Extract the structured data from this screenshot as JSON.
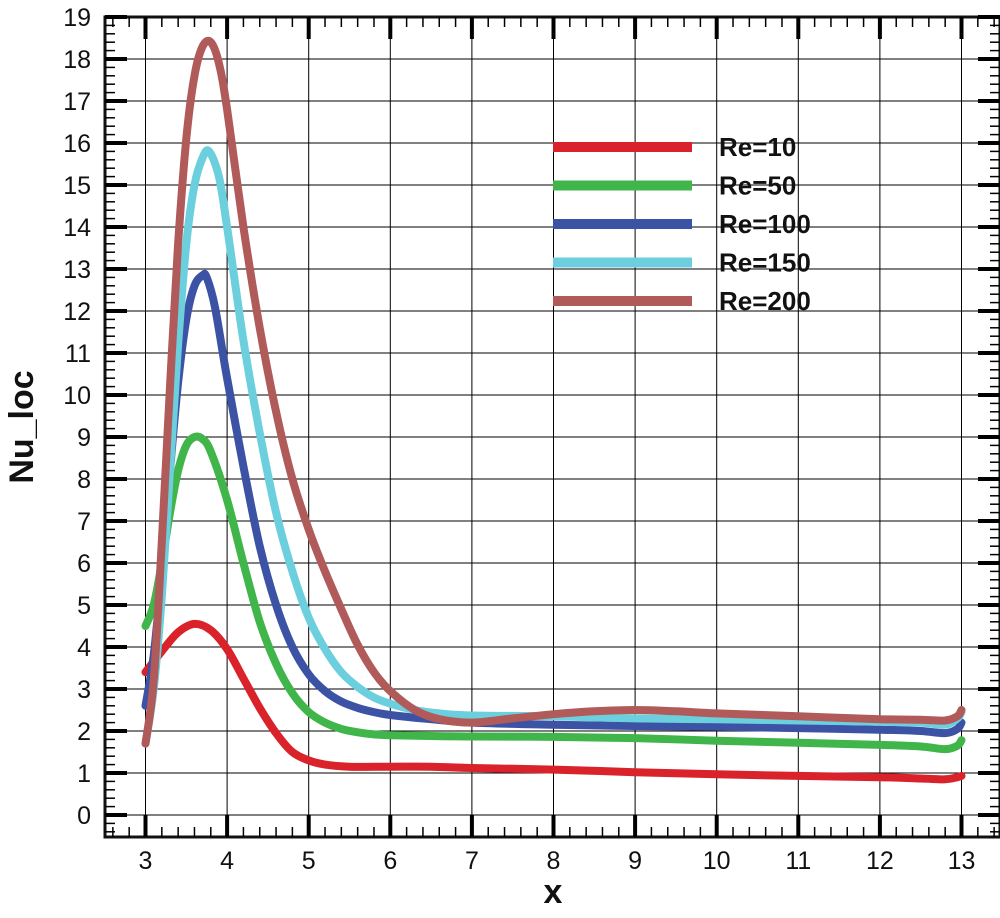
{
  "chart_data": {
    "type": "line",
    "title": "",
    "xlabel": "x",
    "ylabel": "Nu_loc",
    "xlim": [
      2.5,
      13.5
    ],
    "ylim": [
      -0.5,
      19
    ],
    "xticks": [
      3,
      4,
      5,
      6,
      7,
      8,
      9,
      10,
      11,
      12,
      13
    ],
    "yticks": [
      0,
      1,
      2,
      3,
      4,
      5,
      6,
      7,
      8,
      9,
      10,
      11,
      12,
      13,
      14,
      15,
      16,
      17,
      18,
      19
    ],
    "grid": true,
    "legend_position": "top-right",
    "series": [
      {
        "name": "Re=10",
        "color": "#d9222a",
        "x": [
          3.0,
          3.2,
          3.4,
          3.6,
          3.8,
          4.0,
          4.2,
          4.4,
          4.6,
          4.8,
          5.0,
          5.2,
          5.5,
          6.0,
          6.5,
          7.0,
          8.0,
          9.0,
          10.0,
          11.0,
          12.0,
          12.5,
          12.8,
          12.95,
          13.0
        ],
        "y": [
          3.4,
          3.9,
          4.35,
          4.55,
          4.4,
          3.95,
          3.25,
          2.55,
          1.95,
          1.5,
          1.3,
          1.2,
          1.15,
          1.15,
          1.15,
          1.12,
          1.08,
          1.02,
          0.97,
          0.93,
          0.9,
          0.87,
          0.85,
          0.9,
          0.93
        ]
      },
      {
        "name": "Re=50",
        "color": "#3fb54a",
        "x": [
          3.0,
          3.1,
          3.2,
          3.3,
          3.4,
          3.5,
          3.6,
          3.7,
          3.8,
          4.0,
          4.2,
          4.4,
          4.6,
          4.8,
          5.0,
          5.2,
          5.4,
          5.6,
          5.8,
          6.0,
          6.5,
          7.0,
          8.0,
          9.0,
          10.0,
          11.0,
          12.0,
          12.5,
          12.8,
          12.95,
          13.0
        ],
        "y": [
          4.5,
          5.0,
          6.0,
          7.2,
          8.2,
          8.8,
          9.0,
          8.95,
          8.65,
          7.5,
          6.0,
          4.6,
          3.6,
          2.9,
          2.45,
          2.2,
          2.05,
          1.97,
          1.92,
          1.9,
          1.88,
          1.87,
          1.86,
          1.83,
          1.77,
          1.72,
          1.67,
          1.63,
          1.57,
          1.65,
          1.78
        ]
      },
      {
        "name": "Re=100",
        "color": "#3b52a5",
        "x": [
          3.0,
          3.1,
          3.2,
          3.3,
          3.4,
          3.5,
          3.6,
          3.7,
          3.75,
          3.85,
          4.0,
          4.2,
          4.4,
          4.6,
          4.8,
          5.0,
          5.2,
          5.4,
          5.6,
          5.8,
          6.0,
          6.5,
          7.0,
          8.0,
          9.0,
          10.0,
          11.0,
          12.0,
          12.5,
          12.8,
          12.95,
          13.0
        ],
        "y": [
          2.6,
          3.8,
          5.8,
          8.2,
          10.3,
          11.8,
          12.6,
          12.85,
          12.8,
          12.1,
          10.4,
          8.3,
          6.4,
          5.0,
          4.0,
          3.35,
          2.95,
          2.7,
          2.55,
          2.45,
          2.38,
          2.28,
          2.2,
          2.15,
          2.12,
          2.1,
          2.07,
          2.03,
          2.0,
          1.95,
          2.05,
          2.2
        ]
      },
      {
        "name": "Re=150",
        "color": "#6ccfdd",
        "x": [
          3.0,
          3.1,
          3.2,
          3.3,
          3.4,
          3.5,
          3.6,
          3.7,
          3.78,
          3.9,
          4.0,
          4.2,
          4.4,
          4.6,
          4.8,
          5.0,
          5.2,
          5.4,
          5.6,
          5.8,
          6.0,
          6.3,
          6.6,
          7.0,
          8.0,
          9.0,
          10.0,
          11.0,
          12.0,
          12.5,
          12.8,
          12.95,
          13.0
        ],
        "y": [
          1.7,
          3.0,
          5.2,
          8.2,
          11.2,
          13.6,
          15.0,
          15.65,
          15.8,
          15.2,
          14.0,
          11.3,
          9.1,
          7.2,
          5.8,
          4.7,
          3.95,
          3.4,
          3.05,
          2.8,
          2.65,
          2.5,
          2.42,
          2.37,
          2.35,
          2.3,
          2.28,
          2.25,
          2.22,
          2.2,
          2.15,
          2.3,
          2.45
        ]
      },
      {
        "name": "Re=200",
        "color": "#b05a5a",
        "x": [
          3.0,
          3.1,
          3.2,
          3.3,
          3.4,
          3.5,
          3.6,
          3.7,
          3.8,
          3.9,
          4.0,
          4.2,
          4.4,
          4.6,
          4.8,
          5.0,
          5.2,
          5.4,
          5.6,
          5.8,
          6.0,
          6.3,
          6.6,
          7.0,
          7.5,
          8.0,
          8.5,
          9.0,
          9.5,
          10.0,
          11.0,
          12.0,
          12.5,
          12.8,
          12.95,
          13.0
        ],
        "y": [
          1.7,
          3.2,
          6.5,
          10.2,
          13.6,
          16.1,
          17.6,
          18.3,
          18.4,
          17.9,
          16.8,
          14.0,
          11.6,
          9.6,
          8.0,
          6.8,
          5.8,
          4.9,
          4.05,
          3.4,
          2.95,
          2.5,
          2.28,
          2.2,
          2.3,
          2.4,
          2.47,
          2.5,
          2.47,
          2.42,
          2.35,
          2.28,
          2.27,
          2.25,
          2.35,
          2.5
        ]
      }
    ]
  }
}
